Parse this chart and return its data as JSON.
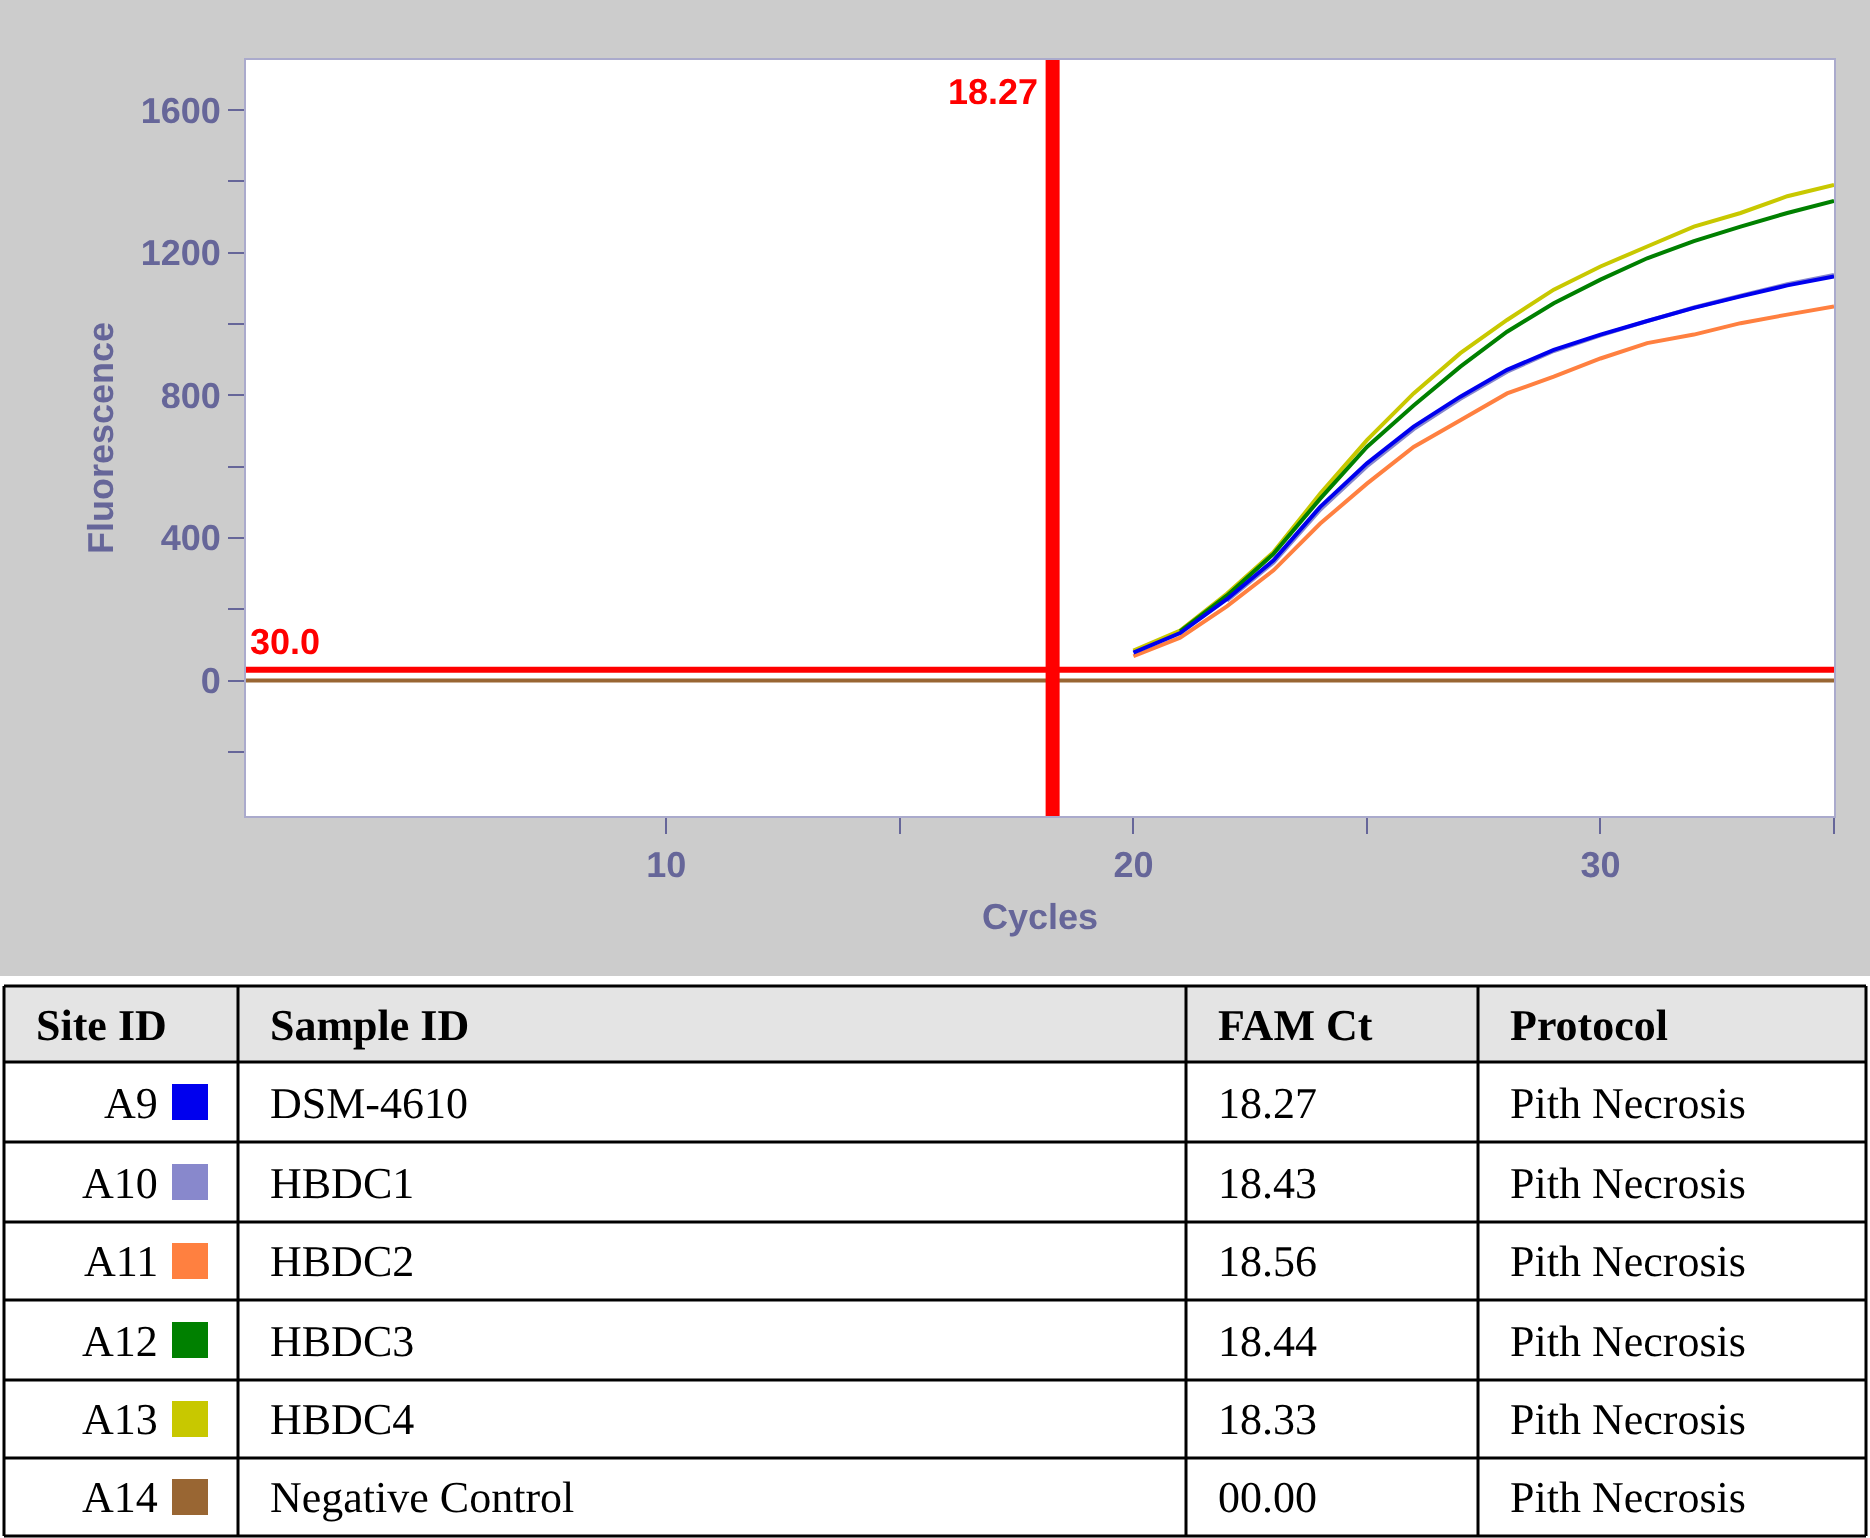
{
  "chart_data": {
    "type": "line",
    "xlabel": "Cycles",
    "ylabel": "Fluorescence",
    "x": [
      1,
      2,
      3,
      4,
      5,
      6,
      7,
      8,
      9,
      10,
      11,
      12,
      13,
      14,
      15,
      16,
      17,
      18,
      19,
      20,
      21,
      22,
      23,
      24,
      25,
      26,
      27,
      28,
      29,
      30,
      31,
      32,
      33,
      34,
      35
    ],
    "series": [
      {
        "name": "DSM-4610",
        "color": "#0000ee",
        "values": [
          null,
          null,
          null,
          null,
          null,
          null,
          null,
          null,
          null,
          null,
          null,
          null,
          null,
          null,
          null,
          null,
          null,
          null,
          null,
          78,
          133,
          228,
          337,
          487,
          609,
          712,
          796,
          871,
          927,
          970,
          1008,
          1045,
          1077,
          1108,
          1133
        ]
      },
      {
        "name": "HBDC1",
        "color": "#8888cc",
        "values": [
          null,
          null,
          null,
          null,
          null,
          null,
          null,
          null,
          null,
          null,
          null,
          null,
          null,
          null,
          null,
          null,
          null,
          null,
          null,
          null,
          null,
          224,
          331,
          479,
          601,
          705,
          790,
          866,
          924,
          968,
          1008,
          1046,
          1079,
          1111,
          1137
        ]
      },
      {
        "name": "HBDC2",
        "color": "#ff8040",
        "values": [
          null,
          null,
          null,
          null,
          null,
          null,
          null,
          null,
          null,
          null,
          null,
          null,
          null,
          null,
          null,
          null,
          null,
          null,
          null,
          68,
          120,
          208,
          309,
          440,
          552,
          655,
          730,
          805,
          852,
          903,
          946,
          970,
          1002,
          1026,
          1049
        ]
      },
      {
        "name": "HBDC3",
        "color": "#008000",
        "values": [
          null,
          null,
          null,
          null,
          null,
          null,
          null,
          null,
          null,
          null,
          null,
          null,
          null,
          null,
          null,
          null,
          null,
          null,
          null,
          null,
          138,
          238,
          355,
          510,
          655,
          771,
          880,
          978,
          1058,
          1124,
          1184,
          1232,
          1273,
          1311,
          1345
        ]
      },
      {
        "name": "HBDC4",
        "color": "#c8c800",
        "values": [
          null,
          null,
          null,
          null,
          null,
          null,
          null,
          null,
          null,
          null,
          null,
          null,
          null,
          null,
          null,
          null,
          null,
          null,
          null,
          84,
          140,
          243,
          360,
          524,
          674,
          805,
          918,
          1011,
          1096,
          1161,
          1217,
          1273,
          1311,
          1358,
          1390
        ]
      },
      {
        "name": "Negative Control",
        "color": "#996633",
        "values": [
          0,
          0,
          0,
          0,
          0,
          0,
          0,
          0,
          0,
          0,
          0,
          0,
          0,
          0,
          0,
          0,
          0,
          0,
          0,
          0,
          0,
          0,
          0,
          0,
          0,
          0,
          0,
          0,
          0,
          0,
          0,
          0,
          0,
          0,
          0
        ]
      }
    ],
    "xlim": [
      1,
      35
    ],
    "xticks": [
      10,
      20,
      30,
      {
        "value": 15,
        "label": null
      },
      {
        "value": 25,
        "label": null
      },
      {
        "value": 35,
        "label": null
      }
    ],
    "ylim": [
      -380,
      1740
    ],
    "yticks": [
      0,
      400,
      800,
      1200,
      1600,
      {
        "value": -200,
        "label": null
      },
      {
        "value": 200,
        "label": null
      },
      {
        "value": 600,
        "label": null
      },
      {
        "value": 1000,
        "label": null
      },
      {
        "value": 1400,
        "label": null
      }
    ],
    "ref_lines": [
      {
        "axis": "y",
        "value": 30,
        "label": "30.0",
        "color": "#ff0000"
      },
      {
        "axis": "x",
        "value": 18.27,
        "label": "18.27",
        "color": "#ff0000"
      }
    ],
    "annotations": [
      "Site ID",
      "Sample ID",
      "FAM Ct",
      "Protocol",
      "A9",
      "18.27",
      "Pith Necrosis",
      "A10",
      "18.43",
      "Pith Necrosis",
      "A11",
      "18.56",
      "Pith Necrosis",
      "A12",
      "18.44",
      "Pith Necrosis",
      "A13",
      "18.33",
      "Pith Necrosis",
      "A14",
      "00.00",
      "Pith Necrosis"
    ],
    "legend": "bottom",
    "marker": "none",
    "line_style": "solid"
  }
}
